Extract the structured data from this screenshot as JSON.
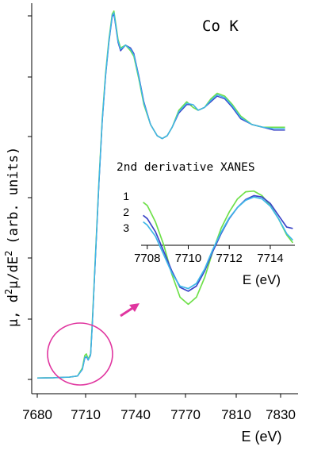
{
  "chart_data": [
    {
      "type": "line",
      "title": "Co K",
      "xlabel": "E (eV)",
      "ylabel": "μ, d²μ/dE² (arb. units)",
      "ylabel_parts": {
        "a": "μ, d",
        "b": "2",
        "c": "μ/dE",
        "d": "2",
        "e": "(arb. units)"
      },
      "xlim": [
        7680,
        7835
      ],
      "ylim": [
        0,
        1.3
      ],
      "x_ticks": [
        "7680",
        "7710",
        "7740",
        "7770",
        "7810",
        "7830"
      ],
      "x_tick_values": [
        7680,
        7710,
        7740,
        7770,
        7810,
        7830
      ],
      "series_colors": [
        "#6fe04a",
        "#3a44c8",
        "#3fb8e8"
      ],
      "series": [
        {
          "x": [
            7680,
            7690,
            7700,
            7705,
            7708,
            7709.5,
            7710.5,
            7711.5,
            7713,
            7714,
            7716,
            7718,
            7720,
            7722,
            7724,
            7726,
            7727,
            7728,
            7729.5,
            7731,
            7734,
            7737,
            7739,
            7742,
            7745,
            7749,
            7753,
            7756,
            7759,
            7762,
            7766,
            7771,
            7776,
            7780,
            7785,
            7790,
            7795,
            7801,
            7807,
            7812,
            7817,
            7822,
            7827,
            7832
          ],
          "y": [
            0.005,
            0.006,
            0.008,
            0.012,
            0.04,
            0.085,
            0.09,
            0.072,
            0.09,
            0.2,
            0.45,
            0.7,
            0.92,
            1.08,
            1.2,
            1.29,
            1.3,
            1.26,
            1.2,
            1.17,
            1.18,
            1.16,
            1.14,
            1.06,
            0.97,
            0.9,
            0.86,
            0.85,
            0.86,
            0.89,
            0.95,
            0.98,
            0.96,
            0.95,
            0.96,
            0.99,
            1.01,
            1.0,
            0.97,
            0.93,
            0.9,
            0.89,
            0.89,
            0.89
          ]
        },
        {
          "x": [
            7680,
            7690,
            7700,
            7705,
            7708,
            7709.5,
            7710.5,
            7711.5,
            7713,
            7714,
            7716,
            7718,
            7720,
            7722,
            7724,
            7726,
            7727,
            7728,
            7729.5,
            7731,
            7734,
            7737,
            7739,
            7742,
            7745,
            7749,
            7753,
            7756,
            7759,
            7762,
            7766,
            7771,
            7776,
            7780,
            7785,
            7790,
            7795,
            7801,
            7807,
            7812,
            7817,
            7822,
            7827,
            7832
          ],
          "y": [
            0.005,
            0.006,
            0.008,
            0.012,
            0.035,
            0.075,
            0.08,
            0.068,
            0.085,
            0.19,
            0.44,
            0.69,
            0.91,
            1.07,
            1.19,
            1.28,
            1.29,
            1.25,
            1.19,
            1.16,
            1.18,
            1.17,
            1.15,
            1.07,
            0.98,
            0.9,
            0.86,
            0.85,
            0.86,
            0.89,
            0.94,
            0.97,
            0.97,
            0.95,
            0.96,
            0.98,
            1.0,
            0.99,
            0.96,
            0.92,
            0.9,
            0.89,
            0.88,
            0.88
          ]
        },
        {
          "x": [
            7680,
            7690,
            7700,
            7705,
            7708,
            7709.5,
            7710.5,
            7711.5,
            7713,
            7714,
            7716,
            7718,
            7720,
            7722,
            7724,
            7726,
            7727,
            7728,
            7729.5,
            7731,
            7734,
            7737,
            7739,
            7742,
            7745,
            7749,
            7753,
            7756,
            7759,
            7762,
            7766,
            7771,
            7776,
            7780,
            7785,
            7790,
            7795,
            7801,
            7807,
            7812,
            7817,
            7822,
            7827,
            7832
          ],
          "y": [
            0.005,
            0.006,
            0.008,
            0.012,
            0.036,
            0.077,
            0.082,
            0.069,
            0.086,
            0.19,
            0.445,
            0.695,
            0.915,
            1.075,
            1.195,
            1.285,
            1.295,
            1.255,
            1.195,
            1.165,
            1.18,
            1.165,
            1.145,
            1.065,
            0.975,
            0.9,
            0.86,
            0.85,
            0.86,
            0.89,
            0.945,
            0.975,
            0.97,
            0.95,
            0.96,
            0.985,
            1.005,
            0.995,
            0.965,
            0.925,
            0.9,
            0.89,
            0.885,
            0.885
          ]
        }
      ],
      "annotation_color": "#e0359f"
    },
    {
      "type": "line",
      "title": "2nd derivative XANES",
      "xlabel": "E (eV)",
      "xlim": [
        7707.7,
        7715.2
      ],
      "ylim": [
        -1.2,
        0.8
      ],
      "x_ticks": [
        "7708",
        "7710",
        "7712",
        "7714"
      ],
      "x_tick_values": [
        7708,
        7710,
        7712,
        7714
      ],
      "legend": [
        "1",
        "2",
        "3"
      ],
      "series_colors": [
        "#6fe04a",
        "#3a44c8",
        "#3fb8e8"
      ],
      "series": [
        {
          "name": "1",
          "x": [
            7707.8,
            7708,
            7708.4,
            7708.8,
            7709.2,
            7709.6,
            7710,
            7710.4,
            7710.8,
            7711.2,
            7711.6,
            7712,
            7712.4,
            7712.8,
            7713.2,
            7713.6,
            7714,
            7714.4,
            7714.8,
            7715.1
          ],
          "y": [
            0.5,
            0.45,
            0.2,
            -0.15,
            -0.6,
            -0.95,
            -1.06,
            -0.95,
            -0.65,
            -0.25,
            0.1,
            0.35,
            0.55,
            0.66,
            0.67,
            0.6,
            0.45,
            0.25,
            0.0,
            -0.12
          ]
        },
        {
          "name": "2",
          "x": [
            7707.8,
            7708,
            7708.4,
            7708.8,
            7709.2,
            7709.6,
            7710,
            7710.4,
            7710.8,
            7711.2,
            7711.6,
            7712,
            7712.4,
            7712.8,
            7713.2,
            7713.6,
            7714,
            7714.4,
            7714.8,
            7715.1
          ],
          "y": [
            0.3,
            0.25,
            0.05,
            -0.25,
            -0.55,
            -0.8,
            -0.86,
            -0.78,
            -0.55,
            -0.25,
            0.02,
            0.25,
            0.42,
            0.54,
            0.6,
            0.58,
            0.48,
            0.3,
            0.12,
            0.1
          ]
        },
        {
          "name": "3",
          "x": [
            7707.8,
            7708,
            7708.4,
            7708.8,
            7709.2,
            7709.6,
            7710,
            7710.4,
            7710.8,
            7711.2,
            7711.6,
            7712,
            7712.4,
            7712.8,
            7713.2,
            7713.6,
            7714,
            7714.4,
            7714.8,
            7715.1
          ],
          "y": [
            0.2,
            0.15,
            -0.02,
            -0.3,
            -0.58,
            -0.78,
            -0.82,
            -0.74,
            -0.52,
            -0.22,
            0.04,
            0.26,
            0.42,
            0.53,
            0.58,
            0.55,
            0.44,
            0.25,
            0.02,
            -0.08
          ]
        }
      ]
    }
  ]
}
